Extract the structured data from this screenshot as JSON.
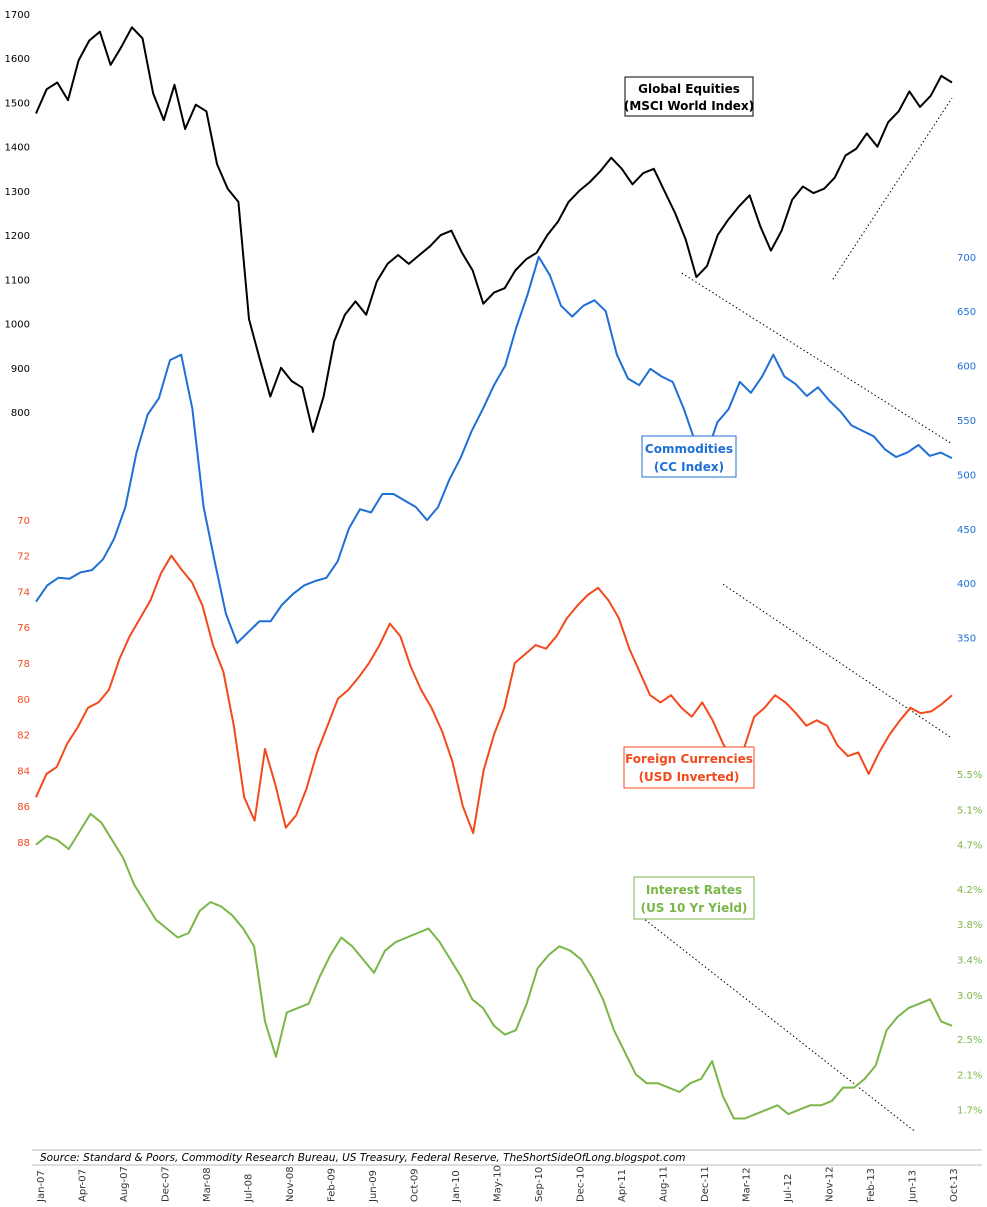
{
  "chart_data": {
    "type": "line",
    "source": "Source: Standard & Poors, Commodity Research Bureau, US Treasury, Federal Reserve, TheShortSideOfLong.blogspot.com",
    "x_tick_labels": [
      "Jan-07",
      "Apr-07",
      "Aug-07",
      "Dec-07",
      "Mar-08",
      "Jul-08",
      "Nov-08",
      "Feb-09",
      "Jun-09",
      "Oct-09",
      "Jan-10",
      "May-10",
      "Sep-10",
      "Dec-10",
      "Apr-11",
      "Aug-11",
      "Dec-11",
      "Mar-12",
      "Jul-12",
      "Nov-12",
      "Feb-13",
      "Jun-13",
      "Oct-13"
    ],
    "series": [
      {
        "key": "equities",
        "name": "Global Equities",
        "subtitle": "(MSCI World Index)",
        "color": "#000000",
        "axis_side": "left",
        "ylim": [
          800,
          1700
        ],
        "ticks": [
          1700,
          1600,
          1500,
          1400,
          1300,
          1200,
          1100,
          1000,
          900,
          800
        ],
        "tick_labels": [
          "1700",
          "1600",
          "1500",
          "1400",
          "1300",
          "1200",
          "1100",
          "1000",
          "900",
          "800"
        ],
        "values": [
          1475,
          1530,
          1545,
          1505,
          1595,
          1640,
          1660,
          1585,
          1625,
          1670,
          1645,
          1520,
          1460,
          1540,
          1440,
          1495,
          1480,
          1360,
          1305,
          1275,
          1010,
          920,
          835,
          900,
          870,
          855,
          755,
          835,
          960,
          1020,
          1050,
          1020,
          1095,
          1135,
          1155,
          1135,
          1155,
          1175,
          1200,
          1210,
          1160,
          1120,
          1045,
          1070,
          1080,
          1120,
          1145,
          1160,
          1200,
          1230,
          1275,
          1300,
          1320,
          1345,
          1375,
          1350,
          1315,
          1340,
          1350,
          1300,
          1250,
          1190,
          1105,
          1130,
          1200,
          1235,
          1265,
          1290,
          1220,
          1165,
          1210,
          1280,
          1310,
          1295,
          1305,
          1330,
          1380,
          1395,
          1430,
          1400,
          1455,
          1480,
          1525,
          1490,
          1515,
          1560,
          1545
        ]
      },
      {
        "key": "commodities",
        "name": "Commodities",
        "subtitle": "(CC Index)",
        "color": "#1f6fd6",
        "axis_side": "right",
        "ylim": [
          300,
          720
        ],
        "ticks": [
          700,
          650,
          600,
          550,
          500,
          450,
          400,
          350
        ],
        "tick_labels": [
          "700",
          "650",
          "600",
          "550",
          "500",
          "450",
          "400",
          "350"
        ],
        "values": [
          383,
          398,
          405,
          404,
          410,
          412,
          422,
          441,
          470,
          520,
          555,
          570,
          605,
          610,
          560,
          470,
          420,
          372,
          345,
          355,
          365,
          365,
          380,
          390,
          398,
          402,
          405,
          420,
          450,
          468,
          465,
          482,
          482,
          476,
          470,
          458,
          470,
          495,
          515,
          540,
          560,
          582,
          600,
          635,
          665,
          700,
          683,
          655,
          645,
          655,
          660,
          650,
          610,
          588,
          582,
          597,
          590,
          585,
          560,
          530,
          518,
          548,
          560,
          585,
          575,
          590,
          610,
          590,
          583,
          572,
          580,
          568,
          558,
          545,
          540,
          535,
          523,
          516,
          520,
          527,
          517,
          520,
          515
        ]
      },
      {
        "key": "currencies",
        "name": "Foreign Currencies",
        "subtitle": "(USD Inverted)",
        "color": "#f24a1c",
        "axis_side": "left",
        "ylim": [
          68,
          88.5
        ],
        "inverted": true,
        "ticks": [
          70,
          72,
          74,
          76,
          78,
          80,
          82,
          84,
          86,
          88
        ],
        "tick_labels": [
          "70",
          "72",
          "74",
          "76",
          "78",
          "80",
          "82",
          "84",
          "86",
          "88"
        ],
        "values": [
          85.5,
          84.2,
          83.8,
          82.5,
          81.6,
          80.5,
          80.2,
          79.5,
          77.8,
          76.5,
          75.5,
          74.5,
          73.0,
          72.0,
          72.8,
          73.5,
          74.8,
          77.0,
          78.5,
          81.5,
          85.5,
          86.8,
          82.8,
          84.8,
          87.2,
          86.5,
          85.0,
          83.0,
          81.5,
          80.0,
          79.5,
          78.8,
          78.0,
          77.0,
          75.8,
          76.5,
          78.2,
          79.5,
          80.5,
          81.8,
          83.5,
          86.0,
          87.5,
          84.0,
          82.0,
          80.5,
          78.0,
          77.5,
          77.0,
          77.2,
          76.5,
          75.5,
          74.8,
          74.2,
          73.8,
          74.5,
          75.5,
          77.2,
          78.5,
          79.8,
          80.2,
          79.8,
          80.5,
          81.0,
          80.2,
          81.2,
          82.5,
          83.5,
          82.8,
          81.0,
          80.5,
          79.8,
          80.2,
          80.8,
          81.5,
          81.2,
          81.5,
          82.6,
          83.2,
          83.0,
          84.2,
          83.0,
          82.0,
          81.2,
          80.5,
          80.8,
          80.7,
          80.3,
          79.8
        ]
      },
      {
        "key": "rates",
        "name": "Interest Rates",
        "subtitle": "(US 10 Yr Yield)",
        "color": "#7ab648",
        "axis_side": "right",
        "ylim": [
          1.3,
          5.75
        ],
        "ticks": [
          5.5,
          5.1,
          4.7,
          4.2,
          3.8,
          3.4,
          3.0,
          2.5,
          2.1,
          1.7
        ],
        "tick_labels": [
          "5.5%",
          "5.1%",
          "4.7%",
          "4.2%",
          "3.8%",
          "3.4%",
          "3.0%",
          "2.5%",
          "2.1%",
          "1.7%"
        ],
        "values": [
          4.7,
          4.8,
          4.75,
          4.65,
          4.85,
          5.05,
          4.95,
          4.75,
          4.55,
          4.25,
          4.05,
          3.85,
          3.75,
          3.65,
          3.7,
          3.95,
          4.05,
          4.0,
          3.9,
          3.75,
          3.55,
          2.7,
          2.3,
          2.8,
          2.85,
          2.9,
          3.2,
          3.45,
          3.65,
          3.55,
          3.4,
          3.25,
          3.5,
          3.6,
          3.65,
          3.7,
          3.75,
          3.6,
          3.4,
          3.2,
          2.95,
          2.85,
          2.65,
          2.55,
          2.6,
          2.9,
          3.3,
          3.45,
          3.55,
          3.5,
          3.4,
          3.2,
          2.95,
          2.6,
          2.35,
          2.1,
          2.0,
          2.0,
          1.95,
          1.9,
          2.0,
          2.05,
          2.25,
          1.85,
          1.6,
          1.6,
          1.65,
          1.7,
          1.75,
          1.65,
          1.7,
          1.75,
          1.75,
          1.8,
          1.95,
          1.95,
          2.05,
          2.2,
          2.6,
          2.75,
          2.85,
          2.9,
          2.95,
          2.7,
          2.65
        ]
      }
    ],
    "trend_lines": [
      {
        "series": "equities",
        "from": [
          0.87,
          1100
        ],
        "to": [
          1.0,
          1510
        ]
      },
      {
        "series": "commodities",
        "from": [
          0.705,
          685
        ],
        "to": [
          1.0,
          528
        ]
      },
      {
        "series": "currencies",
        "from": [
          0.75,
          73.6
        ],
        "to": [
          1.0,
          82.2
        ]
      },
      {
        "series": "rates",
        "from": [
          0.665,
          3.85
        ],
        "to": [
          0.96,
          1.45
        ]
      }
    ]
  }
}
